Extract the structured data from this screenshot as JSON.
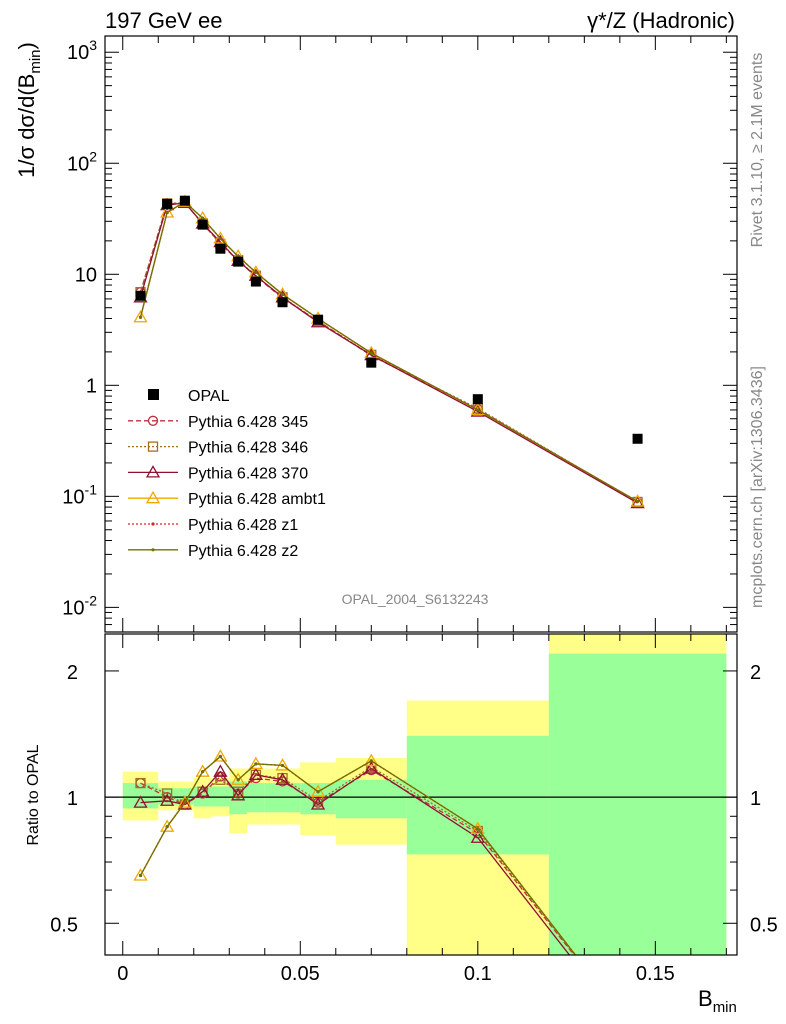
{
  "header": {
    "left": "197 GeV ee",
    "right": "γ*/Z (Hadronic)"
  },
  "side": {
    "rivet": "Rivet 3.1.10, ≥ 2.1M events",
    "mcplots": "mcplots.cern.ch [arXiv:1306.3436]"
  },
  "watermark": "OPAL_2004_S6132243",
  "colors": {
    "data": "#000000",
    "band_inner": "#99ff99",
    "band_outer": "#ffff88",
    "p345": "#c03040",
    "p346": "#a07020",
    "p370": "#901030",
    "ambt1": "#f0a800",
    "z1": "#e02020",
    "z2": "#707000"
  },
  "chart_data": [
    {
      "type": "line",
      "ylabel": "1/σ dσ/d(B_min)",
      "yscale": "log",
      "ylim": [
        0.006,
        1400
      ],
      "xlim": [
        -0.005,
        0.173
      ],
      "yticks": [
        {
          "v": 0.01,
          "label": "10",
          "exp": "-2"
        },
        {
          "v": 0.1,
          "label": "10",
          "exp": "-1"
        },
        {
          "v": 1,
          "label": "1",
          "exp": ""
        },
        {
          "v": 10,
          "label": "10",
          "exp": ""
        },
        {
          "v": 100,
          "label": "10",
          "exp": "2"
        },
        {
          "v": 1000,
          "label": "10",
          "exp": "3"
        }
      ],
      "legend_placement": "middle-left",
      "data": {
        "name": "OPAL",
        "x": [
          0.005,
          0.0125,
          0.0175,
          0.0225,
          0.0275,
          0.0325,
          0.0375,
          0.045,
          0.055,
          0.07,
          0.1,
          0.145
        ],
        "y": [
          6.4,
          43,
          46,
          28,
          17,
          13,
          8.6,
          5.6,
          3.9,
          1.6,
          0.75,
          0.33
        ]
      },
      "series": [
        {
          "name": "Pythia 6.428 345",
          "key": "p345",
          "marker": "circle",
          "dash": "5,3",
          "x": [
            0.005,
            0.0125,
            0.0175,
            0.0225,
            0.0275,
            0.0325,
            0.0375,
            0.045,
            0.055,
            0.07,
            0.1,
            0.145
          ],
          "y": [
            6.9,
            43,
            44,
            28.5,
            19,
            13.2,
            9.6,
            6.1,
            3.8,
            1.85,
            0.61,
            0.088
          ]
        },
        {
          "name": "Pythia 6.428 346",
          "key": "p346",
          "marker": "square",
          "dash": "2,2",
          "x": [
            0.005,
            0.0125,
            0.0175,
            0.0225,
            0.0275,
            0.0325,
            0.0375,
            0.045,
            0.055,
            0.07,
            0.1,
            0.145
          ],
          "y": [
            6.9,
            43.5,
            44,
            28.8,
            18.7,
            13.4,
            9.7,
            6.2,
            3.8,
            1.88,
            0.62,
            0.089
          ]
        },
        {
          "name": "Pythia 6.428 370",
          "key": "p370",
          "marker": "triangle",
          "dash": "",
          "x": [
            0.005,
            0.0125,
            0.0175,
            0.0225,
            0.0275,
            0.0325,
            0.0375,
            0.045,
            0.055,
            0.07,
            0.1,
            0.145
          ],
          "y": [
            6.2,
            42,
            44,
            28.7,
            19.5,
            13.2,
            9.7,
            6.2,
            3.7,
            1.87,
            0.58,
            0.087
          ]
        },
        {
          "name": "Pythia 6.428 ambt1",
          "key": "ambt1",
          "marker": "triangle",
          "dash": "",
          "x": [
            0.005,
            0.0125,
            0.0175,
            0.0225,
            0.0275,
            0.0325,
            0.0375,
            0.045,
            0.055,
            0.07,
            0.1,
            0.145
          ],
          "y": [
            4.1,
            36,
            45,
            32,
            21,
            14.5,
            10.4,
            6.6,
            4.0,
            1.95,
            0.6,
            0.09
          ]
        },
        {
          "name": "Pythia 6.428 z1",
          "key": "z1",
          "marker": "dot",
          "dash": "2,2",
          "x": [
            0.005,
            0.0125,
            0.0175,
            0.0225,
            0.0275,
            0.0325,
            0.0375,
            0.045,
            0.055,
            0.07,
            0.1,
            0.145
          ],
          "y": [
            4.1,
            36,
            45,
            32,
            21,
            14.5,
            10.4,
            6.6,
            4.0,
            1.95,
            0.6,
            0.09
          ]
        },
        {
          "name": "Pythia 6.428 z2",
          "key": "z2",
          "marker": "dot",
          "dash": "",
          "x": [
            0.005,
            0.0125,
            0.0175,
            0.0225,
            0.0275,
            0.0325,
            0.0375,
            0.045,
            0.055,
            0.07,
            0.1,
            0.145
          ],
          "y": [
            4.1,
            36,
            45,
            32,
            21,
            14.5,
            10.4,
            6.6,
            4.0,
            1.95,
            0.6,
            0.09
          ]
        }
      ]
    },
    {
      "type": "line",
      "ylabel": "Ratio to OPAL",
      "xlabel": "B_min",
      "yscale": "log",
      "ylim": [
        0.42,
        2.45
      ],
      "xlim": [
        -0.005,
        0.173
      ],
      "yticks": [
        0.5,
        1,
        2
      ],
      "xticks": [
        {
          "v": 0,
          "label": "0"
        },
        {
          "v": 0.05,
          "label": "0.05"
        },
        {
          "v": 0.1,
          "label": "0.1"
        },
        {
          "v": 0.15,
          "label": "0.15"
        }
      ],
      "bins": [
        {
          "lo": 0.0,
          "hi": 0.01,
          "inner": [
            0.94,
            1.08
          ],
          "outer": [
            0.88,
            1.15
          ]
        },
        {
          "lo": 0.01,
          "hi": 0.015,
          "inner": [
            0.96,
            1.05
          ],
          "outer": [
            0.93,
            1.09
          ]
        },
        {
          "lo": 0.015,
          "hi": 0.02,
          "inner": [
            0.96,
            1.05
          ],
          "outer": [
            0.93,
            1.09
          ]
        },
        {
          "lo": 0.02,
          "hi": 0.025,
          "inner": [
            0.95,
            1.06
          ],
          "outer": [
            0.89,
            1.11
          ]
        },
        {
          "lo": 0.025,
          "hi": 0.03,
          "inner": [
            0.95,
            1.06
          ],
          "outer": [
            0.9,
            1.11
          ]
        },
        {
          "lo": 0.03,
          "hi": 0.035,
          "inner": [
            0.91,
            1.09
          ],
          "outer": [
            0.82,
            1.17
          ]
        },
        {
          "lo": 0.035,
          "hi": 0.04,
          "inner": [
            0.92,
            1.08
          ],
          "outer": [
            0.86,
            1.17
          ]
        },
        {
          "lo": 0.04,
          "hi": 0.05,
          "inner": [
            0.92,
            1.08
          ],
          "outer": [
            0.86,
            1.17
          ]
        },
        {
          "lo": 0.05,
          "hi": 0.06,
          "inner": [
            0.91,
            1.08
          ],
          "outer": [
            0.81,
            1.21
          ]
        },
        {
          "lo": 0.06,
          "hi": 0.08,
          "inner": [
            0.89,
            1.1
          ],
          "outer": [
            0.77,
            1.24
          ]
        },
        {
          "lo": 0.08,
          "hi": 0.12,
          "inner": [
            0.73,
            1.4
          ],
          "outer": [
            0.3,
            1.7
          ]
        },
        {
          "lo": 0.12,
          "hi": 0.17,
          "inner": [
            0.3,
            2.2
          ],
          "outer": [
            0.3,
            2.6
          ]
        }
      ],
      "series": [
        {
          "name": "Pythia 6.428 345",
          "key": "p345",
          "marker": "circle",
          "dash": "5,3",
          "x": [
            0.005,
            0.0125,
            0.0175,
            0.0225,
            0.0275,
            0.0325,
            0.0375,
            0.045,
            0.055,
            0.07,
            0.1,
            0.145
          ],
          "y": [
            1.08,
            1.0,
            0.96,
            1.02,
            1.12,
            1.02,
            1.11,
            1.09,
            0.97,
            1.16,
            0.82,
            0.27
          ]
        },
        {
          "name": "Pythia 6.428 346",
          "key": "p346",
          "marker": "square",
          "dash": "2,2",
          "x": [
            0.005,
            0.0125,
            0.0175,
            0.0225,
            0.0275,
            0.0325,
            0.0375,
            0.045,
            0.055,
            0.07,
            0.1,
            0.145
          ],
          "y": [
            1.08,
            1.02,
            0.96,
            1.03,
            1.1,
            1.03,
            1.13,
            1.11,
            0.98,
            1.18,
            0.83,
            0.27
          ]
        },
        {
          "name": "Pythia 6.428 370",
          "key": "p370",
          "marker": "triangle",
          "dash": "",
          "x": [
            0.005,
            0.0125,
            0.0175,
            0.0225,
            0.0275,
            0.0325,
            0.0375,
            0.045,
            0.055,
            0.07,
            0.1,
            0.145
          ],
          "y": [
            0.97,
            0.98,
            0.96,
            1.03,
            1.15,
            1.01,
            1.13,
            1.1,
            0.96,
            1.17,
            0.8,
            0.26
          ]
        },
        {
          "name": "Pythia 6.428 ambt1",
          "key": "ambt1",
          "marker": "triangle",
          "dash": "",
          "x": [
            0.005,
            0.0125,
            0.0175,
            0.0225,
            0.0275,
            0.0325,
            0.0375,
            0.045,
            0.055,
            0.07,
            0.1,
            0.145
          ],
          "y": [
            0.65,
            0.85,
            0.97,
            1.15,
            1.25,
            1.1,
            1.2,
            1.19,
            1.03,
            1.22,
            0.84,
            0.27
          ]
        },
        {
          "name": "Pythia 6.428 z1",
          "key": "z1",
          "marker": "dot",
          "dash": "2,2",
          "x": [
            0.005,
            0.0125,
            0.0175,
            0.0225,
            0.0275,
            0.0325,
            0.0375,
            0.045,
            0.055,
            0.07,
            0.1,
            0.145
          ],
          "y": [
            0.65,
            0.85,
            0.97,
            1.15,
            1.25,
            1.1,
            1.2,
            1.19,
            1.03,
            1.22,
            0.84,
            0.27
          ]
        },
        {
          "name": "Pythia 6.428 z2",
          "key": "z2",
          "marker": "dot",
          "dash": "",
          "x": [
            0.005,
            0.0125,
            0.0175,
            0.0225,
            0.0275,
            0.0325,
            0.0375,
            0.045,
            0.055,
            0.07,
            0.1,
            0.145
          ],
          "y": [
            0.65,
            0.85,
            0.97,
            1.15,
            1.25,
            1.1,
            1.2,
            1.19,
            1.03,
            1.22,
            0.84,
            0.27
          ]
        }
      ]
    }
  ]
}
